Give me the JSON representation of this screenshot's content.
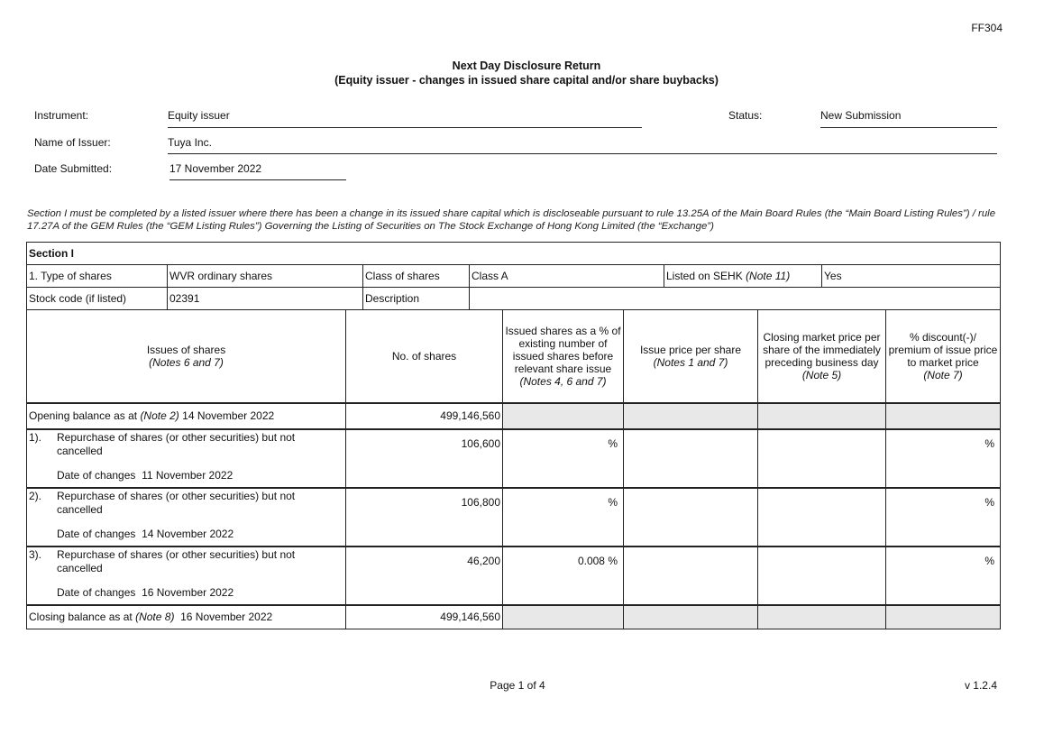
{
  "form_code": "FF304",
  "title": "Next Day Disclosure Return",
  "subtitle": "(Equity issuer - changes in issued share capital and/or share buybacks)",
  "header": {
    "instrument_label": "Instrument:",
    "instrument_value": "Equity issuer",
    "status_label": "Status:",
    "status_value": "New Submission",
    "issuer_label": "Name of Issuer:",
    "issuer_value": "Tuya Inc.",
    "date_label": "Date Submitted:",
    "date_value": "17 November 2022"
  },
  "intro": "Section I must be completed by a listed issuer where there has been a change in its issued share capital which is discloseable pursuant to rule 13.25A of the Main Board Rules (the “Main Board Listing Rules”) / rule 17.27A of the GEM Rules (the “GEM Listing Rules”) Governing the Listing of Securities on The Stock Exchange of Hong Kong Limited (the “Exchange”)",
  "section": {
    "title": "Section I",
    "type_label": "1. Type of shares",
    "type_value": "WVR ordinary shares",
    "class_label": "Class of shares",
    "class_value": "Class A",
    "listed_label": "Listed on SEHK",
    "listed_note": "(Note 11)",
    "listed_value": "Yes",
    "stock_code_label": "Stock code (if listed)",
    "stock_code_value": "02391",
    "description_label": "Description",
    "description_value": ""
  },
  "columns": {
    "issues": "Issues of shares",
    "issues_note": "(Notes 6 and 7)",
    "shares": "No. of shares",
    "pct": "Issued shares as a % of existing number of issued shares before relevant share issue",
    "pct_note": "(Notes 4, 6 and 7)",
    "price": "Issue price per share",
    "price_note": "(Notes 1 and 7)",
    "market": "Closing market price per share of the immediately preceding business day",
    "market_note": "(Note 5)",
    "discount": "% discount(-)/ premium of issue price to market price",
    "discount_note": "(Note 7)"
  },
  "opening": {
    "label": "Opening balance as at",
    "note": "(Note 2)",
    "date": "14 November 2022",
    "shares": "499,146,560"
  },
  "items": [
    {
      "num": "1).",
      "desc": "Repurchase of shares (or other securities) but not cancelled",
      "date_label": "Date of changes",
      "date": "11 November 2022",
      "shares": "106,600",
      "pct": "%",
      "discount": "%"
    },
    {
      "num": "2).",
      "desc": "Repurchase of shares (or other securities) but not cancelled",
      "date_label": "Date of changes",
      "date": "14 November 2022",
      "shares": "106,800",
      "pct": "%",
      "discount": "%"
    },
    {
      "num": "3).",
      "desc": "Repurchase of shares (or other securities) but not cancelled",
      "date_label": "Date of changes",
      "date": "16 November 2022",
      "shares": "46,200",
      "pct": "0.008 %",
      "discount": "%"
    }
  ],
  "closing": {
    "label": "Closing balance as at",
    "note": "(Note 8)",
    "date": "16 November 2022",
    "shares": "499,146,560"
  },
  "footer": {
    "page": "Page 1 of 4",
    "version": "v 1.2.4"
  }
}
